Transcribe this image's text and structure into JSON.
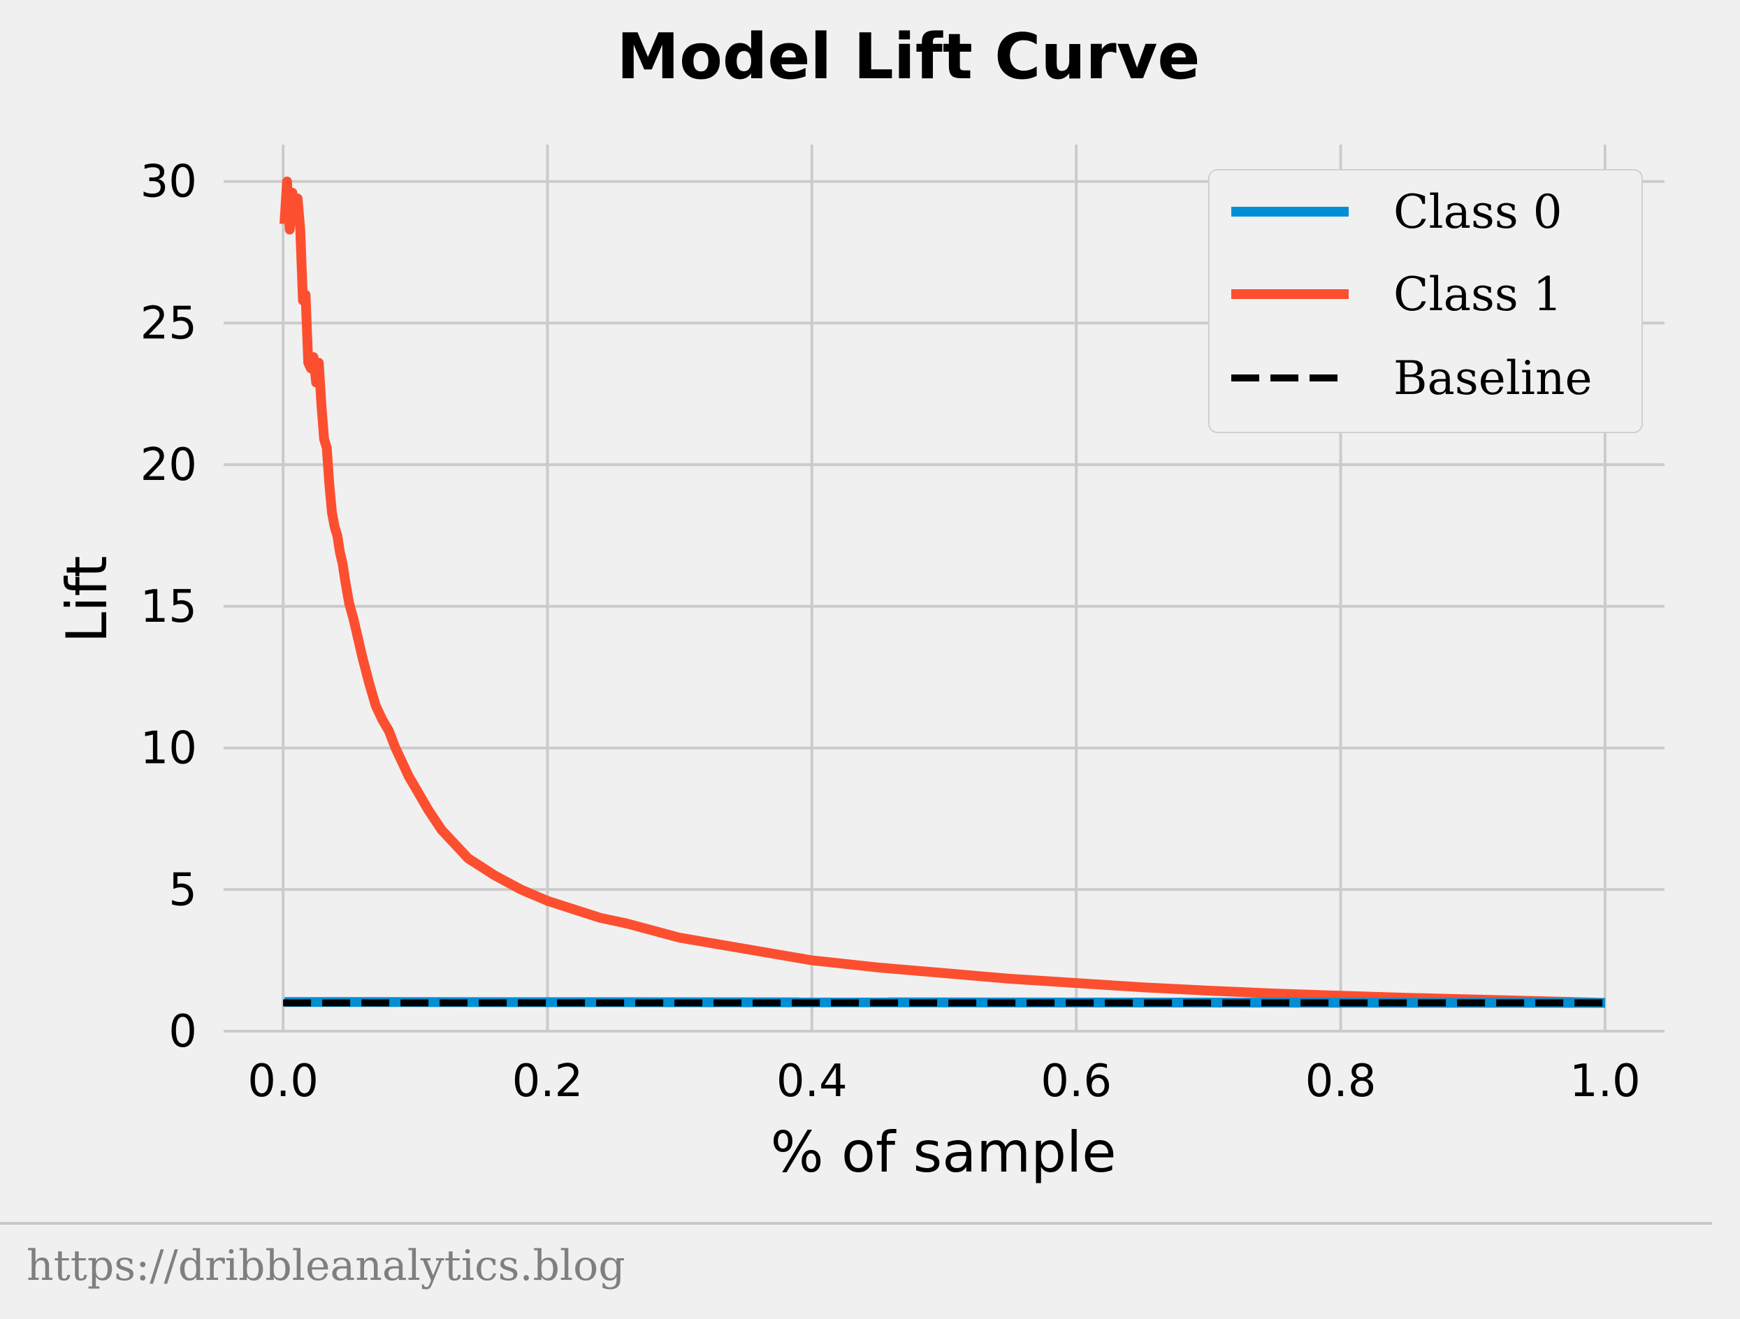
{
  "chart_data": {
    "type": "line",
    "title": "Model Lift Curve",
    "xlabel": "% of sample",
    "ylabel": "Lift",
    "xlim": [
      -0.045,
      1.045
    ],
    "ylim": [
      0,
      31.3
    ],
    "xticks": [
      0.0,
      0.2,
      0.4,
      0.6,
      0.8,
      1.0
    ],
    "xtick_labels": [
      "0.0",
      "0.2",
      "0.4",
      "0.6",
      "0.8",
      "1.0"
    ],
    "yticks": [
      0,
      5,
      10,
      15,
      20,
      25,
      30
    ],
    "ytick_labels": [
      "0",
      "5",
      "10",
      "15",
      "20",
      "25",
      "30"
    ],
    "grid": true,
    "legend_position": "top-right",
    "series": [
      {
        "name": "Class 0",
        "color": "#008fd5",
        "style": "solid",
        "x": [
          0.001,
          1.0
        ],
        "y": [
          1.03,
          1.0
        ]
      },
      {
        "name": "Class 1",
        "color": "#fc4f30",
        "style": "solid",
        "x": [
          0.001,
          0.003,
          0.005,
          0.007,
          0.009,
          0.011,
          0.013,
          0.015,
          0.017,
          0.019,
          0.021,
          0.023,
          0.025,
          0.027,
          0.029,
          0.031,
          0.033,
          0.035,
          0.037,
          0.039,
          0.041,
          0.043,
          0.045,
          0.047,
          0.05,
          0.053,
          0.056,
          0.06,
          0.065,
          0.07,
          0.075,
          0.08,
          0.085,
          0.09,
          0.095,
          0.1,
          0.11,
          0.12,
          0.13,
          0.14,
          0.15,
          0.16,
          0.18,
          0.2,
          0.22,
          0.24,
          0.26,
          0.3,
          0.35,
          0.4,
          0.45,
          0.5,
          0.55,
          0.6,
          0.65,
          0.7,
          0.75,
          0.8,
          0.85,
          0.9,
          0.95,
          1.0
        ],
        "y": [
          28.5,
          30.0,
          28.3,
          29.6,
          28.8,
          29.4,
          28.3,
          25.8,
          26.0,
          23.6,
          23.4,
          23.8,
          22.9,
          23.6,
          22.1,
          20.9,
          20.6,
          19.3,
          18.3,
          17.8,
          17.5,
          16.9,
          16.5,
          15.9,
          15.1,
          14.6,
          14.0,
          13.2,
          12.3,
          11.5,
          11.0,
          10.6,
          10.0,
          9.5,
          9.0,
          8.6,
          7.8,
          7.1,
          6.6,
          6.1,
          5.8,
          5.5,
          5.0,
          4.6,
          4.3,
          4.0,
          3.8,
          3.3,
          2.9,
          2.5,
          2.25,
          2.05,
          1.85,
          1.7,
          1.55,
          1.43,
          1.33,
          1.25,
          1.18,
          1.12,
          1.06,
          1.0
        ]
      },
      {
        "name": "Baseline",
        "color": "#000000",
        "style": "dashed",
        "x": [
          0.0,
          1.0
        ],
        "y": [
          1.0,
          1.0
        ]
      }
    ]
  },
  "footer": {
    "source": "https://dribbleanalytics.blog"
  }
}
